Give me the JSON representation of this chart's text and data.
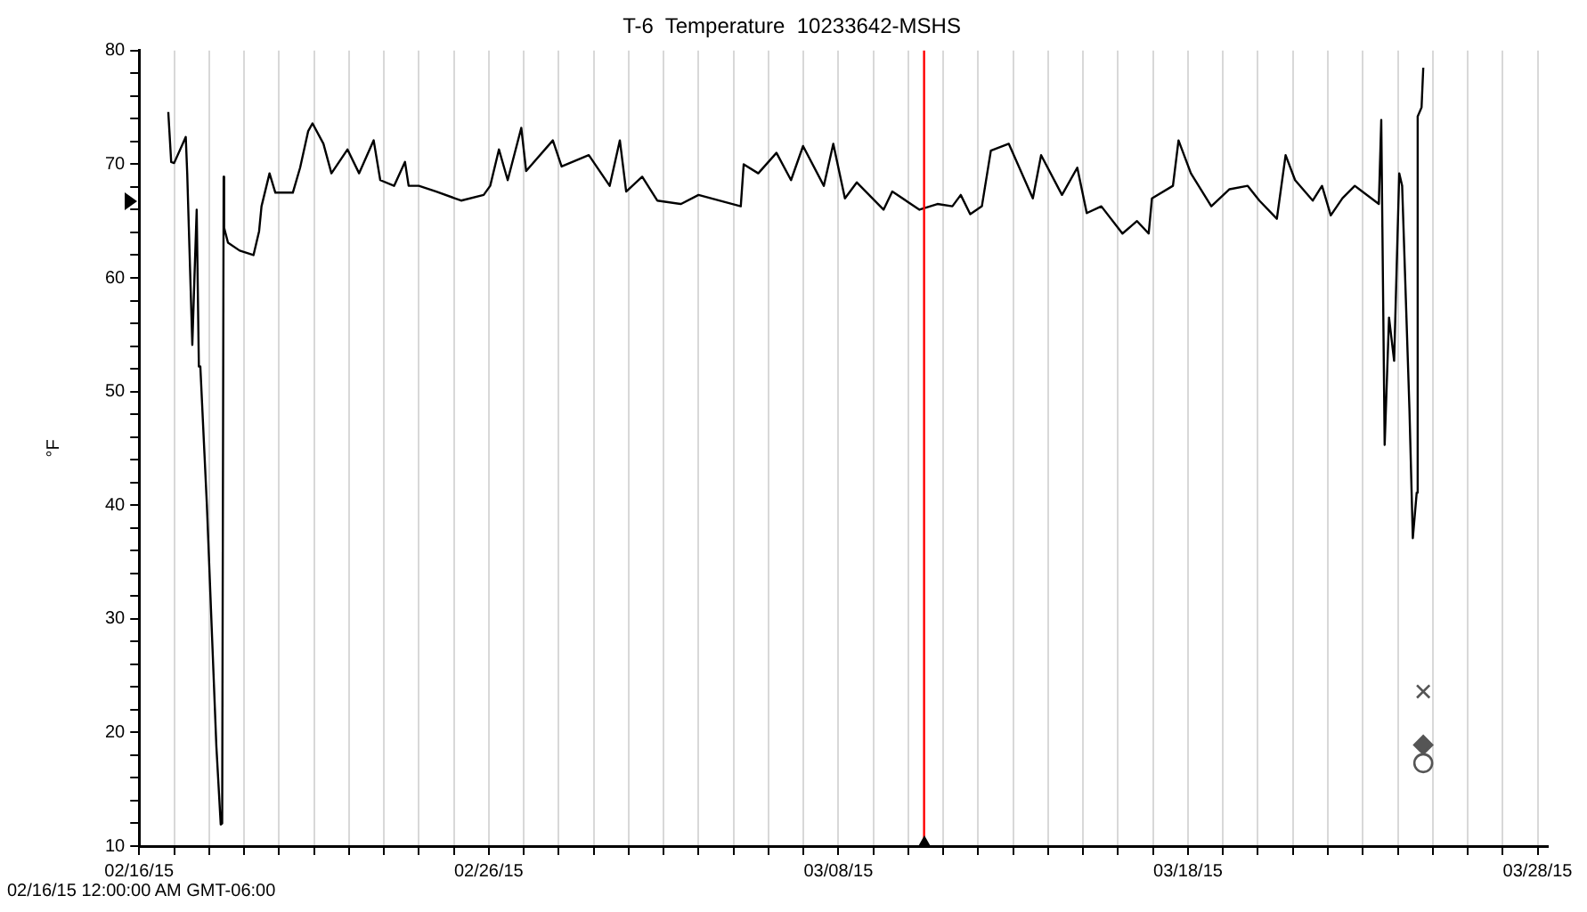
{
  "chart_data": {
    "type": "line",
    "title": "T-6  Temperature  10233642-MSHS",
    "ylabel": "°F",
    "annotations": [
      "02/16/15 12:00:00 AM GMT-06:00"
    ],
    "xlim": [
      "--02-16",
      "--03-28T07:00"
    ],
    "xticks": [
      {
        "value": "--02-16",
        "label": "02/16/15"
      },
      {
        "value": "--02-17",
        "label": null
      },
      {
        "value": "--02-18",
        "label": null
      },
      {
        "value": "--02-19",
        "label": null
      },
      {
        "value": "--02-20",
        "label": null
      },
      {
        "value": "--02-21",
        "label": null
      },
      {
        "value": "--02-22",
        "label": null
      },
      {
        "value": "--02-23",
        "label": null
      },
      {
        "value": "--02-24",
        "label": null
      },
      {
        "value": "--02-25",
        "label": null
      },
      {
        "value": "--02-26",
        "label": "02/26/15"
      },
      {
        "value": "--02-27",
        "label": null
      },
      {
        "value": "--02-28",
        "label": null
      },
      {
        "value": "--03-01",
        "label": null
      },
      {
        "value": "--03-02",
        "label": null
      },
      {
        "value": "--03-03",
        "label": null
      },
      {
        "value": "--03-04",
        "label": null
      },
      {
        "value": "--03-05",
        "label": null
      },
      {
        "value": "--03-06",
        "label": null
      },
      {
        "value": "--03-07",
        "label": null
      },
      {
        "value": "--03-08",
        "label": "03/08/15"
      },
      {
        "value": "--03-09",
        "label": null
      },
      {
        "value": "--03-10",
        "label": null
      },
      {
        "value": "--03-11",
        "label": null
      },
      {
        "value": "--03-12",
        "label": null
      },
      {
        "value": "--03-13",
        "label": null
      },
      {
        "value": "--03-14",
        "label": null
      },
      {
        "value": "--03-15",
        "label": null
      },
      {
        "value": "--03-16",
        "label": null
      },
      {
        "value": "--03-17",
        "label": null
      },
      {
        "value": "--03-18",
        "label": "03/18/15"
      },
      {
        "value": "--03-19",
        "label": null
      },
      {
        "value": "--03-20",
        "label": null
      },
      {
        "value": "--03-21",
        "label": null
      },
      {
        "value": "--03-22",
        "label": null
      },
      {
        "value": "--03-23",
        "label": null
      },
      {
        "value": "--03-24",
        "label": null
      },
      {
        "value": "--03-25",
        "label": null
      },
      {
        "value": "--03-26",
        "label": null
      },
      {
        "value": "--03-27",
        "label": null
      },
      {
        "value": "--03-28",
        "label": "03/28/15"
      }
    ],
    "ylim": [
      10,
      80
    ],
    "yticks": [
      10,
      {
        "value": 12,
        "label": null
      },
      {
        "value": 14,
        "label": null
      },
      {
        "value": 16,
        "label": null
      },
      {
        "value": 18,
        "label": null
      },
      20,
      {
        "value": 22,
        "label": null
      },
      {
        "value": 24,
        "label": null
      },
      {
        "value": 26,
        "label": null
      },
      {
        "value": 28,
        "label": null
      },
      30,
      {
        "value": 32,
        "label": null
      },
      {
        "value": 34,
        "label": null
      },
      {
        "value": 36,
        "label": null
      },
      {
        "value": 38,
        "label": null
      },
      40,
      {
        "value": 42,
        "label": null
      },
      {
        "value": 44,
        "label": null
      },
      {
        "value": 46,
        "label": null
      },
      {
        "value": 48,
        "label": null
      },
      50,
      {
        "value": 52,
        "label": null
      },
      {
        "value": 54,
        "label": null
      },
      {
        "value": 56,
        "label": null
      },
      {
        "value": 58,
        "label": null
      },
      60,
      {
        "value": 62,
        "label": null
      },
      {
        "value": 64,
        "label": null
      },
      {
        "value": 66,
        "label": null
      },
      {
        "value": 68,
        "label": null
      },
      70,
      {
        "value": 72,
        "label": null
      },
      {
        "value": 74,
        "label": null
      },
      {
        "value": 76,
        "label": null
      },
      {
        "value": 78,
        "label": null
      },
      80
    ],
    "grid": "x",
    "legend": false,
    "marker": "none",
    "line_style": "solid",
    "ref_lines": [
      {
        "axis": "x",
        "value": "--03-10T10:50",
        "color": "#ff0000"
      }
    ],
    "series": [
      {
        "color": "#000000",
        "x": [
          "--02-16T20:00",
          "--02-16T22:00",
          "--02-17T00:00",
          "--02-17T08:00",
          "--02-17T09:00",
          "--02-17T12:30",
          "--02-17T14:00",
          "--02-17T15:30",
          "--02-17T17:00",
          "--02-17T18:00",
          "--02-17T22:30",
          "--02-18T05:00",
          "--02-18T08:00",
          "--02-18T09:00",
          "--02-18T10:00",
          "--02-18T10:20",
          "--02-18T13:00",
          "--02-18T21:00",
          "--02-19T06:30",
          "--02-19T10:20",
          "--02-19T12:00",
          "--02-19T17:30",
          "--02-19T21:30",
          "--02-20T09:30",
          "--02-20T14:30",
          "--02-20T20:00",
          "--02-20T23:00",
          "--02-21T06:30",
          "--02-21T12:00",
          "--02-21T23:00",
          "--02-22T07:00",
          "--02-22T17:00",
          "--02-22T21:30",
          "--02-23T07:00",
          "--02-23T14:30",
          "--02-23T17:00",
          "--02-24T00:00",
          "--02-24T12:00",
          "--02-25T05:00",
          "--02-25T20:30",
          "--02-26T01:00",
          "--02-26T07:00",
          "--02-26T13:00",
          "--02-26T22:20",
          "--02-27T01:40",
          "--02-27T20:00",
          "--02-28T02:00",
          "--02-28T20:40",
          "--03-01T11:00",
          "--03-01T18:00",
          "--03-01T22:20",
          "--03-02T09:20",
          "--03-02T19:40",
          "--03-03T12:00",
          "--03-04T00:00",
          "--03-05T05:00",
          "--03-05T07:00",
          "--03-05T17:00",
          "--03-06T05:30",
          "--03-06T15:30",
          "--03-06T23:45",
          "--03-07T14:00",
          "--03-07T20:30",
          "--03-08T04:30",
          "--03-08T12:40",
          "--03-09T07:00",
          "--03-09T13:00",
          "--03-10T07:40",
          "--03-10T20:00",
          "--03-11T06:15",
          "--03-11T12:00",
          "--03-11T18:30",
          "--03-12T02:30",
          "--03-12T08:40",
          "--03-12T21:00",
          "--03-13T13:30",
          "--03-13T19:10",
          "--03-14T09:30",
          "--03-14T20:00",
          "--03-15T02:30",
          "--03-15T12:30",
          "--03-16T03:00",
          "--03-16T13:00",
          "--03-16T21:00",
          "--03-16T23:15",
          "--03-17T13:40",
          "--03-17T17:30",
          "--03-18T02:00",
          "--03-18T16:00",
          "--03-19T04:30",
          "--03-19T17:00",
          "--03-20T01:00",
          "--03-20T13:00",
          "--03-20T19:00",
          "--03-21T01:30",
          "--03-21T13:40",
          "--03-21T20:00",
          "--03-22T02:00",
          "--03-22T10:00",
          "--03-22T18:30",
          "--03-23T11:00",
          "--03-23T12:40",
          "--03-23T15:00",
          "--03-23T18:00",
          "--03-23T21:30",
          "--03-24T01:00",
          "--03-24T03:00",
          "--03-24T08:00",
          "--03-24T10:20",
          "--03-24T13:00",
          "--03-24T13:40",
          "--03-24T16:20",
          "--03-24T17:30"
        ],
        "values": [
          74.6,
          70.2,
          70.1,
          72.4,
          69.2,
          54.1,
          60.2,
          66,
          52.2,
          52.2,
          40,
          18.8,
          11.9,
          12,
          68.9,
          64.4,
          63.1,
          62.4,
          62,
          64.1,
          66.3,
          69.2,
          67.5,
          67.5,
          69.7,
          72.9,
          73.6,
          71.8,
          69.2,
          71.3,
          69.2,
          72.1,
          68.6,
          68.1,
          70.2,
          68.1,
          68.1,
          67.6,
          66.8,
          67.3,
          68.1,
          71.3,
          68.6,
          73.2,
          69.4,
          72.1,
          69.8,
          70.8,
          68.1,
          72.1,
          67.6,
          68.9,
          66.8,
          66.5,
          67.3,
          66.3,
          70,
          69.2,
          71,
          68.6,
          71.6,
          68.1,
          71.8,
          67,
          68.4,
          66,
          67.6,
          66,
          66.5,
          66.3,
          67.3,
          65.6,
          66.3,
          71.2,
          71.8,
          67,
          70.8,
          67.3,
          69.7,
          65.7,
          66.3,
          63.9,
          65,
          63.9,
          67,
          68.1,
          72.1,
          69.2,
          66.3,
          67.8,
          68.1,
          66.8,
          65.2,
          70.8,
          68.6,
          66.8,
          68.1,
          65.5,
          67,
          68.1,
          66.5,
          73.9,
          45.3,
          56.5,
          52.7,
          69.2,
          68.1,
          48.5,
          37.1,
          41.1,
          74.2,
          75,
          78.5
        ]
      },
      {
        "type": "scatter",
        "color": "#555555",
        "marker": "cross",
        "x": [
          "--03-24T17:30"
        ],
        "values": [
          23.6
        ]
      },
      {
        "type": "scatter",
        "color": "#555555",
        "marker": "diamond",
        "x": [
          "--03-24T17:30"
        ],
        "values": [
          18.9
        ]
      },
      {
        "type": "scatter",
        "color": "#555555",
        "marker": "circle",
        "x": [
          "--03-24T17:30"
        ],
        "values": [
          17.3
        ]
      }
    ]
  }
}
